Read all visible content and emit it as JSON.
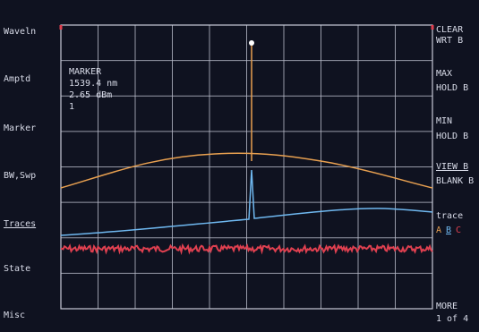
{
  "left_menu": [
    "Waveln",
    "Amptd",
    "Marker",
    "BW,Swp",
    "Traces",
    "State",
    "Misc"
  ],
  "right_menu": [
    "CLEAR",
    "WRT B",
    "MAX",
    "HOLD B",
    "MIN",
    "HOLD B",
    "VIEW B",
    "BLANK B",
    "trace",
    "MORE",
    "1 of 4"
  ],
  "trace_select": [
    "A",
    "B",
    "C"
  ],
  "marker": {
    "title": "MARKER",
    "wavelength": "1539.4 nm",
    "amplitude": "2.65 dBm",
    "number": "1"
  }
}
